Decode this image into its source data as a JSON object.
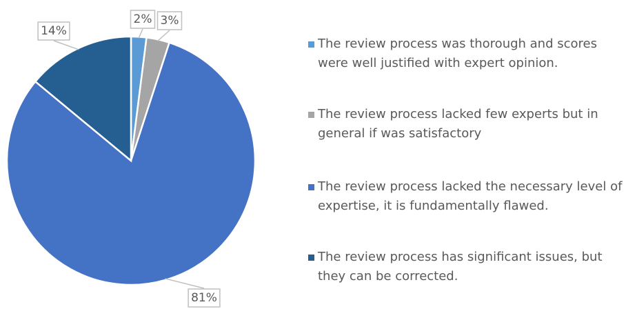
{
  "chart_data": {
    "type": "pie",
    "categories": [
      "The review process was thorough and scores were well justified with expert opinion.",
      "The review process lacked few experts but in general if was satisfactory",
      "The review process lacked the necessary level of expertise, it is fundamentally flawed.",
      "The review process has significant issues, but they can be corrected."
    ],
    "values": [
      2,
      3,
      81,
      14
    ],
    "value_labels": [
      "2%",
      "3%",
      "81%",
      "14%"
    ],
    "colors": [
      "#5b9bd5",
      "#a5a5a5",
      "#4472c4",
      "#255e91"
    ],
    "legend": "right"
  }
}
